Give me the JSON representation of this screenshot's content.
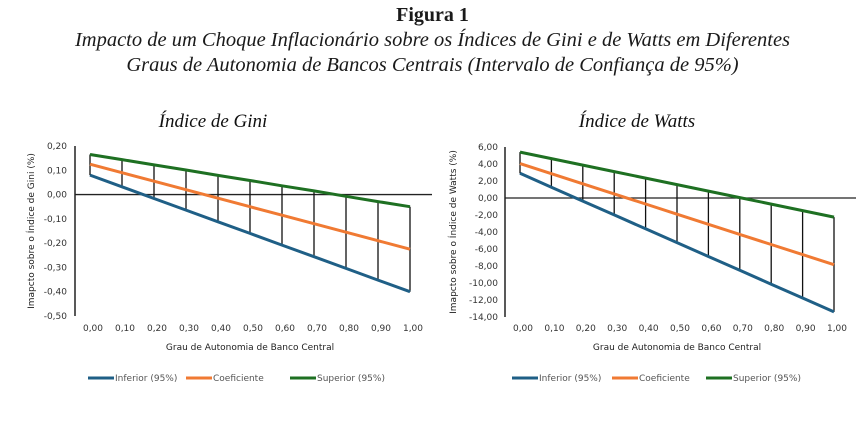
{
  "figure": {
    "label": "Figura 1",
    "caption_line1": "Impacto de um Choque Inflacionário sobre os Índices de Gini e de Watts em Diferentes",
    "caption_line2": "Graus de Autonomia de Bancos Centrais (Intervalo de Confiança de 95%)"
  },
  "colors": {
    "inferior": "#1f5f86",
    "coeficiente": "#f07a33",
    "superior": "#1e7022",
    "error_bar": "#111111",
    "axis": "#222222"
  },
  "chart_data": [
    {
      "type": "line",
      "title": "Índice de Gini",
      "xlabel": "Grau de Autonomia de Banco Central",
      "ylabel": "Imapcto sobre o Índice de Gini (%)",
      "x": [
        0.0,
        0.1,
        0.2,
        0.3,
        0.4,
        0.5,
        0.6,
        0.7,
        0.8,
        0.9,
        1.0
      ],
      "x_tick_labels": [
        "0,00",
        "0,10",
        "0,20",
        "0,30",
        "0,40",
        "0,50",
        "0,60",
        "0,70",
        "0,80",
        "0,90",
        "1,00"
      ],
      "ylim": [
        -0.5,
        0.2
      ],
      "y_ticks": [
        0.2,
        0.1,
        0.0,
        -0.1,
        -0.2,
        -0.3,
        -0.4,
        -0.5
      ],
      "y_tick_labels": [
        "0,20",
        "0,10",
        "0,00",
        "-0,10",
        "-0,20",
        "-0,30",
        "-0,40",
        "-0,50"
      ],
      "grid": false,
      "legend_position": "bottom",
      "error_bars": "vertical lines from Inferior to Superior at each x",
      "series": [
        {
          "name": "Inferior (95%)",
          "key": "inferior",
          "values": [
            0.08,
            0.032,
            -0.016,
            -0.064,
            -0.112,
            -0.16,
            -0.208,
            -0.256,
            -0.304,
            -0.352,
            -0.4
          ]
        },
        {
          "name": "Coeficiente",
          "key": "coeficiente",
          "values": [
            0.125,
            0.09,
            0.055,
            0.02,
            -0.015,
            -0.05,
            -0.085,
            -0.12,
            -0.155,
            -0.19,
            -0.225
          ]
        },
        {
          "name": "Superior (95%)",
          "key": "superior",
          "values": [
            0.165,
            0.144,
            0.122,
            0.101,
            0.079,
            0.058,
            0.036,
            0.015,
            -0.007,
            -0.029,
            -0.05
          ]
        }
      ]
    },
    {
      "type": "line",
      "title": "Índice de Watts",
      "xlabel": "Grau de Autonomia de Banco Central",
      "ylabel": "Imapcto sobre o Índice de Watts (%)",
      "x": [
        0.0,
        0.1,
        0.2,
        0.3,
        0.4,
        0.5,
        0.6,
        0.7,
        0.8,
        0.9,
        1.0
      ],
      "x_tick_labels": [
        "0,00",
        "0,10",
        "0,20",
        "0,30",
        "0,40",
        "0,50",
        "0,60",
        "0,70",
        "0,80",
        "0,90",
        "1,00"
      ],
      "ylim": [
        -14,
        6
      ],
      "y_ticks": [
        6,
        4,
        2,
        0,
        -2,
        -4,
        -6,
        -8,
        -10,
        -12,
        -14
      ],
      "y_tick_labels": [
        "6,00",
        "4,00",
        "2,00",
        "0,00",
        "-2,00",
        "-4,00",
        "-6,00",
        "-8,00",
        "-10,00",
        "-12,00",
        "-14,00"
      ],
      "grid": false,
      "legend_position": "bottom",
      "error_bars": "vertical lines from Inferior to Superior at each x",
      "series": [
        {
          "name": "Inferior (95%)",
          "key": "inferior",
          "values": [
            2.9,
            1.27,
            -0.36,
            -1.99,
            -3.62,
            -5.25,
            -6.88,
            -8.51,
            -10.14,
            -11.77,
            -13.4
          ]
        },
        {
          "name": "Coeficiente",
          "key": "coeficiente",
          "values": [
            4.05,
            2.86,
            1.67,
            0.48,
            -0.71,
            -1.9,
            -3.09,
            -4.28,
            -5.47,
            -6.66,
            -7.85
          ]
        },
        {
          "name": "Superior (95%)",
          "key": "superior",
          "values": [
            5.4,
            4.64,
            3.87,
            3.11,
            2.34,
            1.58,
            0.81,
            0.05,
            -0.72,
            -1.48,
            -2.25
          ]
        }
      ]
    }
  ]
}
